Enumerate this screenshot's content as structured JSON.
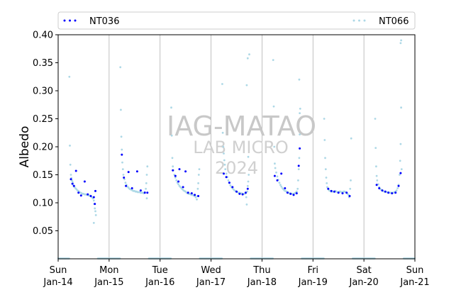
{
  "chart_data": {
    "type": "scatter",
    "ylabel": "Albedo",
    "ylim": [
      0.0,
      0.4
    ],
    "yticks": [
      "0.05",
      "0.10",
      "0.15",
      "0.20",
      "0.25",
      "0.30",
      "0.35",
      "0.40"
    ],
    "xlim_days": [
      0,
      7
    ],
    "xticks": [
      {
        "day": "Sun",
        "date": "Jan-14"
      },
      {
        "day": "Mon",
        "date": "Jan-15"
      },
      {
        "day": "Tue",
        "date": "Jan-16"
      },
      {
        "day": "Wed",
        "date": "Jan-17"
      },
      {
        "day": "Thu",
        "date": "Jan-18"
      },
      {
        "day": "Fri",
        "date": "Jan-19"
      },
      {
        "day": "Sat",
        "date": "Jan-20"
      },
      {
        "day": "Sun",
        "date": "Jan-21"
      }
    ],
    "grid": "vertical",
    "legend_placement": "top",
    "watermark": [
      "IAG-MATAO",
      "LAB MICRO",
      "2024"
    ],
    "series": [
      {
        "name": "NT036",
        "color": "#0000ff",
        "points": [
          [
            0.25,
            0.142
          ],
          [
            0.28,
            0.134
          ],
          [
            0.31,
            0.13
          ],
          [
            0.35,
            0.157
          ],
          [
            0.4,
            0.118
          ],
          [
            0.45,
            0.113
          ],
          [
            0.52,
            0.138
          ],
          [
            0.58,
            0.115
          ],
          [
            0.64,
            0.112
          ],
          [
            0.7,
            0.11
          ],
          [
            0.72,
            0.098
          ],
          [
            0.73,
            0.121
          ],
          [
            1.25,
            0.186
          ],
          [
            1.29,
            0.145
          ],
          [
            1.33,
            0.13
          ],
          [
            1.38,
            0.155
          ],
          [
            1.45,
            0.126
          ],
          [
            1.55,
            0.156
          ],
          [
            1.62,
            0.122
          ],
          [
            1.7,
            0.118
          ],
          [
            1.75,
            0.118
          ],
          [
            2.25,
            0.158
          ],
          [
            2.3,
            0.148
          ],
          [
            2.36,
            0.138
          ],
          [
            2.38,
            0.16
          ],
          [
            2.45,
            0.128
          ],
          [
            2.5,
            0.156
          ],
          [
            2.55,
            0.118
          ],
          [
            2.62,
            0.117
          ],
          [
            2.68,
            0.114
          ],
          [
            2.75,
            0.112
          ],
          [
            3.25,
            0.152
          ],
          [
            3.3,
            0.146
          ],
          [
            3.36,
            0.136
          ],
          [
            3.42,
            0.128
          ],
          [
            3.5,
            0.12
          ],
          [
            3.56,
            0.116
          ],
          [
            3.62,
            0.115
          ],
          [
            3.68,
            0.118
          ],
          [
            3.72,
            0.125
          ],
          [
            4.25,
            0.148
          ],
          [
            4.3,
            0.14
          ],
          [
            4.38,
            0.152
          ],
          [
            4.45,
            0.126
          ],
          [
            4.5,
            0.118
          ],
          [
            4.56,
            0.116
          ],
          [
            4.62,
            0.114
          ],
          [
            4.68,
            0.117
          ],
          [
            4.72,
            0.166
          ],
          [
            4.74,
            0.197
          ],
          [
            5.3,
            0.125
          ],
          [
            5.36,
            0.121
          ],
          [
            5.42,
            0.12
          ],
          [
            5.5,
            0.118
          ],
          [
            5.58,
            0.117
          ],
          [
            5.66,
            0.118
          ],
          [
            5.72,
            0.112
          ],
          [
            6.25,
            0.132
          ],
          [
            6.3,
            0.126
          ],
          [
            6.36,
            0.122
          ],
          [
            6.42,
            0.12
          ],
          [
            6.48,
            0.118
          ],
          [
            6.55,
            0.117
          ],
          [
            6.62,
            0.118
          ],
          [
            6.68,
            0.13
          ],
          [
            6.72,
            0.153
          ]
        ]
      },
      {
        "name": "NT066",
        "color": "#add8e6",
        "points": [
          [
            0.22,
            0.325
          ],
          [
            0.23,
            0.202
          ],
          [
            0.24,
            0.168
          ],
          [
            0.25,
            0.15
          ],
          [
            0.26,
            0.144
          ],
          [
            0.27,
            0.14
          ],
          [
            0.28,
            0.138
          ],
          [
            0.29,
            0.135
          ],
          [
            0.3,
            0.131
          ],
          [
            0.32,
            0.128
          ],
          [
            0.34,
            0.126
          ],
          [
            0.36,
            0.124
          ],
          [
            0.38,
            0.122
          ],
          [
            0.4,
            0.121
          ],
          [
            0.42,
            0.119
          ],
          [
            0.44,
            0.118
          ],
          [
            0.46,
            0.117
          ],
          [
            0.48,
            0.116
          ],
          [
            0.5,
            0.116
          ],
          [
            0.52,
            0.115
          ],
          [
            0.54,
            0.115
          ],
          [
            0.56,
            0.114
          ],
          [
            0.58,
            0.114
          ],
          [
            0.6,
            0.113
          ],
          [
            0.62,
            0.113
          ],
          [
            0.64,
            0.112
          ],
          [
            0.66,
            0.11
          ],
          [
            0.68,
            0.108
          ],
          [
            0.7,
            0.104
          ],
          [
            0.71,
            0.098
          ],
          [
            0.72,
            0.09
          ],
          [
            0.73,
            0.085
          ],
          [
            0.7,
            0.064
          ],
          [
            0.74,
            0.078
          ],
          [
            1.22,
            0.342
          ],
          [
            1.23,
            0.266
          ],
          [
            1.24,
            0.218
          ],
          [
            1.25,
            0.195
          ],
          [
            1.26,
            0.172
          ],
          [
            1.27,
            0.16
          ],
          [
            1.28,
            0.15
          ],
          [
            1.3,
            0.142
          ],
          [
            1.32,
            0.136
          ],
          [
            1.34,
            0.132
          ],
          [
            1.36,
            0.129
          ],
          [
            1.38,
            0.127
          ],
          [
            1.4,
            0.125
          ],
          [
            1.42,
            0.124
          ],
          [
            1.44,
            0.123
          ],
          [
            1.46,
            0.122
          ],
          [
            1.48,
            0.121
          ],
          [
            1.5,
            0.121
          ],
          [
            1.52,
            0.12
          ],
          [
            1.54,
            0.12
          ],
          [
            1.56,
            0.119
          ],
          [
            1.58,
            0.119
          ],
          [
            1.6,
            0.119
          ],
          [
            1.62,
            0.118
          ],
          [
            1.64,
            0.118
          ],
          [
            1.66,
            0.118
          ],
          [
            1.68,
            0.117
          ],
          [
            1.7,
            0.119
          ],
          [
            1.72,
            0.125
          ],
          [
            1.73,
            0.135
          ],
          [
            1.74,
            0.15
          ],
          [
            1.75,
            0.165
          ],
          [
            1.74,
            0.108
          ],
          [
            2.22,
            0.27
          ],
          [
            2.23,
            0.22
          ],
          [
            2.24,
            0.18
          ],
          [
            2.25,
            0.165
          ],
          [
            2.26,
            0.158
          ],
          [
            2.28,
            0.15
          ],
          [
            2.3,
            0.145
          ],
          [
            2.32,
            0.14
          ],
          [
            2.34,
            0.136
          ],
          [
            2.36,
            0.133
          ],
          [
            2.38,
            0.13
          ],
          [
            2.4,
            0.128
          ],
          [
            2.42,
            0.126
          ],
          [
            2.44,
            0.124
          ],
          [
            2.46,
            0.122
          ],
          [
            2.48,
            0.121
          ],
          [
            2.5,
            0.12
          ],
          [
            2.52,
            0.118
          ],
          [
            2.54,
            0.117
          ],
          [
            2.56,
            0.116
          ],
          [
            2.58,
            0.116
          ],
          [
            2.6,
            0.115
          ],
          [
            2.62,
            0.114
          ],
          [
            2.64,
            0.114
          ],
          [
            2.66,
            0.113
          ],
          [
            2.68,
            0.112
          ],
          [
            2.7,
            0.11
          ],
          [
            2.72,
            0.106
          ],
          [
            2.73,
            0.112
          ],
          [
            2.74,
            0.125
          ],
          [
            2.75,
            0.135
          ],
          [
            2.76,
            0.15
          ],
          [
            2.77,
            0.16
          ],
          [
            3.22,
            0.312
          ],
          [
            3.23,
            0.225
          ],
          [
            3.24,
            0.2
          ],
          [
            3.25,
            0.188
          ],
          [
            3.26,
            0.176
          ],
          [
            3.27,
            0.168
          ],
          [
            3.28,
            0.16
          ],
          [
            3.3,
            0.152
          ],
          [
            3.32,
            0.146
          ],
          [
            3.34,
            0.14
          ],
          [
            3.36,
            0.135
          ],
          [
            3.38,
            0.131
          ],
          [
            3.4,
            0.128
          ],
          [
            3.42,
            0.126
          ],
          [
            3.44,
            0.124
          ],
          [
            3.46,
            0.122
          ],
          [
            3.48,
            0.121
          ],
          [
            3.5,
            0.12
          ],
          [
            3.52,
            0.119
          ],
          [
            3.54,
            0.118
          ],
          [
            3.56,
            0.118
          ],
          [
            3.58,
            0.117
          ],
          [
            3.6,
            0.117
          ],
          [
            3.62,
            0.116
          ],
          [
            3.64,
            0.116
          ],
          [
            3.66,
            0.116
          ],
          [
            3.68,
            0.117
          ],
          [
            3.69,
            0.11
          ],
          [
            3.7,
            0.097
          ],
          [
            3.71,
            0.12
          ],
          [
            3.72,
            0.13
          ],
          [
            3.73,
            0.138
          ],
          [
            3.74,
            0.15
          ],
          [
            3.7,
            0.31
          ],
          [
            3.72,
            0.358
          ],
          [
            3.75,
            0.365
          ],
          [
            3.73,
            0.182
          ],
          [
            4.22,
            0.355
          ],
          [
            4.23,
            0.272
          ],
          [
            4.24,
            0.2
          ],
          [
            4.25,
            0.17
          ],
          [
            4.26,
            0.162
          ],
          [
            4.28,
            0.154
          ],
          [
            4.3,
            0.147
          ],
          [
            4.32,
            0.141
          ],
          [
            4.34,
            0.136
          ],
          [
            4.36,
            0.132
          ],
          [
            4.38,
            0.129
          ],
          [
            4.4,
            0.126
          ],
          [
            4.42,
            0.124
          ],
          [
            4.44,
            0.122
          ],
          [
            4.46,
            0.121
          ],
          [
            4.48,
            0.12
          ],
          [
            4.5,
            0.119
          ],
          [
            4.52,
            0.118
          ],
          [
            4.54,
            0.117
          ],
          [
            4.56,
            0.117
          ],
          [
            4.58,
            0.116
          ],
          [
            4.6,
            0.116
          ],
          [
            4.62,
            0.116
          ],
          [
            4.64,
            0.117
          ],
          [
            4.66,
            0.118
          ],
          [
            4.68,
            0.12
          ],
          [
            4.7,
            0.125
          ],
          [
            4.71,
            0.14
          ],
          [
            4.72,
            0.16
          ],
          [
            4.73,
            0.18
          ],
          [
            4.74,
            0.222
          ],
          [
            4.75,
            0.268
          ],
          [
            4.73,
            0.32
          ],
          [
            4.74,
            0.26
          ],
          [
            5.22,
            0.25
          ],
          [
            5.23,
            0.212
          ],
          [
            5.24,
            0.18
          ],
          [
            5.25,
            0.16
          ],
          [
            5.26,
            0.145
          ],
          [
            5.27,
            0.135
          ],
          [
            5.28,
            0.128
          ],
          [
            5.3,
            0.124
          ],
          [
            5.32,
            0.122
          ],
          [
            5.34,
            0.121
          ],
          [
            5.36,
            0.12
          ],
          [
            5.38,
            0.12
          ],
          [
            5.4,
            0.12
          ],
          [
            5.42,
            0.12
          ],
          [
            5.44,
            0.121
          ],
          [
            5.46,
            0.12
          ],
          [
            5.48,
            0.119
          ],
          [
            5.5,
            0.119
          ],
          [
            5.52,
            0.12
          ],
          [
            5.54,
            0.12
          ],
          [
            5.56,
            0.119
          ],
          [
            5.58,
            0.119
          ],
          [
            5.6,
            0.12
          ],
          [
            5.62,
            0.12
          ],
          [
            5.64,
            0.119
          ],
          [
            5.66,
            0.118
          ],
          [
            5.68,
            0.116
          ],
          [
            5.7,
            0.114
          ],
          [
            5.71,
            0.11
          ],
          [
            5.72,
            0.112
          ],
          [
            5.73,
            0.125
          ],
          [
            5.74,
            0.14
          ],
          [
            5.75,
            0.215
          ],
          [
            6.22,
            0.25
          ],
          [
            6.23,
            0.198
          ],
          [
            6.24,
            0.165
          ],
          [
            6.25,
            0.148
          ],
          [
            6.26,
            0.14
          ],
          [
            6.28,
            0.133
          ],
          [
            6.3,
            0.128
          ],
          [
            6.32,
            0.125
          ],
          [
            6.34,
            0.123
          ],
          [
            6.36,
            0.122
          ],
          [
            6.38,
            0.121
          ],
          [
            6.4,
            0.12
          ],
          [
            6.42,
            0.12
          ],
          [
            6.44,
            0.119
          ],
          [
            6.46,
            0.119
          ],
          [
            6.48,
            0.119
          ],
          [
            6.5,
            0.118
          ],
          [
            6.52,
            0.118
          ],
          [
            6.54,
            0.118
          ],
          [
            6.56,
            0.118
          ],
          [
            6.58,
            0.118
          ],
          [
            6.6,
            0.119
          ],
          [
            6.62,
            0.12
          ],
          [
            6.64,
            0.122
          ],
          [
            6.66,
            0.126
          ],
          [
            6.68,
            0.132
          ],
          [
            6.7,
            0.15
          ],
          [
            6.71,
            0.175
          ],
          [
            6.72,
            0.205
          ],
          [
            6.73,
            0.27
          ],
          [
            6.72,
            0.385
          ],
          [
            6.73,
            0.39
          ],
          [
            6.74,
            0.16
          ]
        ]
      }
    ]
  }
}
